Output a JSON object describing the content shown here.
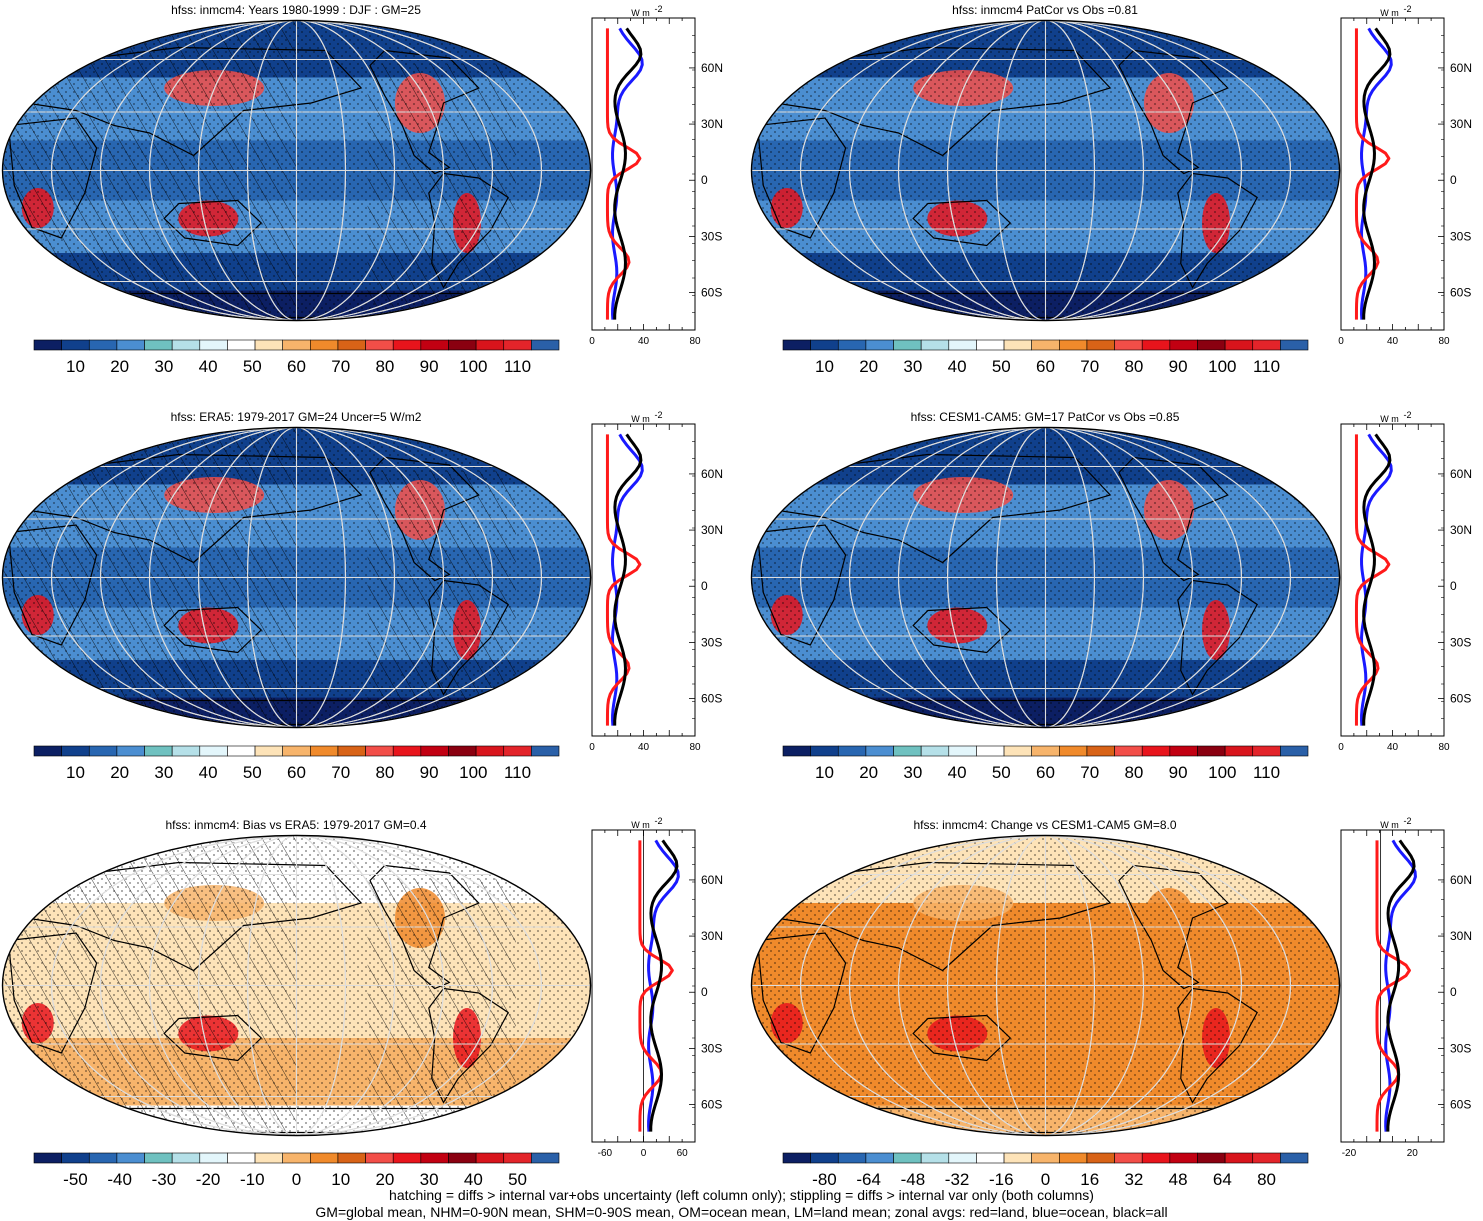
{
  "colors": {
    "abs_scale": [
      "#0c1f63",
      "#10408c",
      "#2866b1",
      "#4b8ed1",
      "#6fc1c0",
      "#b5e0e8",
      "#e3f6fb",
      "#ffffff",
      "#fde3b8",
      "#f7b46b",
      "#f08a2b",
      "#d86317",
      "#f24e48",
      "#e8141c",
      "#c20012",
      "#8a0010",
      "#d8141c",
      "#e3242a",
      "#2a60a8"
    ],
    "diff_scale": [
      "#0c1f63",
      "#10408c",
      "#2866b1",
      "#4b8ed1",
      "#6fc1c0",
      "#b5e0e8",
      "#e3f6fb",
      "#ffffff",
      "#fde3b8",
      "#f7b46b",
      "#f08a2b",
      "#d86317",
      "#f24e48",
      "#e8141c",
      "#c20012",
      "#8a0010",
      "#d8141c",
      "#e3242a",
      "#2a60a8"
    ],
    "land_line": "#ff1a1a",
    "ocean_line": "#1a1aff",
    "all_line": "#000000"
  },
  "panels": [
    {
      "id": "p1",
      "title": "hfss: inmcm4: Years 1980-1999 : DJF : GM=25",
      "map_style": "abs",
      "hatching": true,
      "colorbar_labels": [
        "10",
        "20",
        "30",
        "40",
        "50",
        "60",
        "70",
        "80",
        "90",
        "100",
        "110"
      ],
      "zonal": {
        "unit": "W m",
        "unit_sup": "-2",
        "x_ticks": [
          "0",
          "40",
          "80"
        ],
        "x_range": [
          0,
          80
        ],
        "lat_labels": [
          "60N",
          "30N",
          "0",
          "30S",
          "60S"
        ]
      }
    },
    {
      "id": "p2",
      "title": "hfss: inmcm4 PatCor vs Obs =0.81",
      "map_style": "abs",
      "hatching": false,
      "colorbar_labels": [
        "10",
        "20",
        "30",
        "40",
        "50",
        "60",
        "70",
        "80",
        "90",
        "100",
        "110"
      ],
      "zonal": {
        "unit": "W m",
        "unit_sup": "-2",
        "x_ticks": [
          "0",
          "40",
          "80"
        ],
        "x_range": [
          0,
          80
        ],
        "lat_labels": [
          "60N",
          "30N",
          "0",
          "30S",
          "60S"
        ]
      }
    },
    {
      "id": "p3",
      "title": "hfss: ERA5: 1979-2017 GM=24 Uncer=5 W/m2",
      "map_style": "abs",
      "hatching": true,
      "colorbar_labels": [
        "10",
        "20",
        "30",
        "40",
        "50",
        "60",
        "70",
        "80",
        "90",
        "100",
        "110"
      ],
      "zonal": {
        "unit": "W m",
        "unit_sup": "-2",
        "x_ticks": [
          "0",
          "40",
          "80"
        ],
        "x_range": [
          0,
          80
        ],
        "lat_labels": [
          "60N",
          "30N",
          "0",
          "30S",
          "60S"
        ]
      }
    },
    {
      "id": "p4",
      "title": "hfss: CESM1-CAM5: GM=17 PatCor vs Obs =0.85",
      "map_style": "abs",
      "hatching": false,
      "colorbar_labels": [
        "10",
        "20",
        "30",
        "40",
        "50",
        "60",
        "70",
        "80",
        "90",
        "100",
        "110"
      ],
      "zonal": {
        "unit": "W m",
        "unit_sup": "-2",
        "x_ticks": [
          "0",
          "40",
          "80"
        ],
        "x_range": [
          0,
          80
        ],
        "lat_labels": [
          "60N",
          "30N",
          "0",
          "30S",
          "60S"
        ]
      }
    },
    {
      "id": "p5",
      "title": "hfss: inmcm4: Bias vs ERA5: 1979-2017 GM=0.4",
      "map_style": "bias",
      "hatching": true,
      "colorbar_labels": [
        "-50",
        "-40",
        "-30",
        "-20",
        "-10",
        "0",
        "10",
        "20",
        "30",
        "40",
        "50"
      ],
      "zonal": {
        "unit": "W m",
        "unit_sup": "-2",
        "x_ticks": [
          "-60",
          "0",
          "60"
        ],
        "x_range": [
          -80,
          80
        ],
        "lat_labels": [
          "60N",
          "30N",
          "0",
          "30S",
          "60S"
        ]
      }
    },
    {
      "id": "p6",
      "title": "hfss: inmcm4: Change vs CESM1-CAM5 GM=8.0",
      "map_style": "change",
      "hatching": false,
      "colorbar_labels": [
        "-80",
        "-64",
        "-48",
        "-32",
        "-16",
        "0",
        "16",
        "32",
        "48",
        "64",
        "80"
      ],
      "zonal": {
        "unit": "W m",
        "unit_sup": "-2",
        "x_ticks": [
          "-20",
          "20"
        ],
        "x_range": [
          -25,
          40
        ],
        "lat_labels": [
          "60N",
          "30N",
          "0",
          "30S",
          "60S"
        ]
      }
    }
  ],
  "footnote": {
    "line1": "hatching = diffs > internal var+obs uncertainty (left column only); stippling = diffs > internal var only (both columns)",
    "line2": "GM=global mean, NHM=0-90N mean, SHM=0-90S mean, OM=ocean mean, LM=land mean; zonal avgs: red=land, blue=ocean, black=all"
  }
}
